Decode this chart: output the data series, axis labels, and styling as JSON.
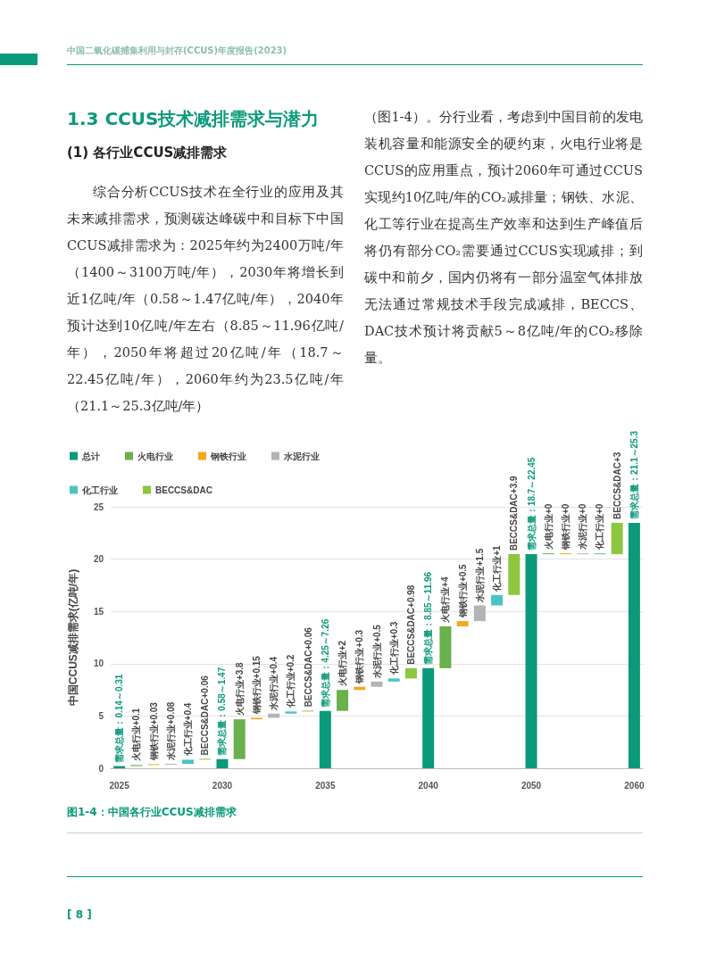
{
  "chart_data": {
    "type": "bar",
    "title": "图1-4：中国各行业CCUS减排需求",
    "ylabel": "中国CCUS减排需求(亿吨/年)",
    "annotations": [
      "中国二氧化碳捕集利用与封存(CCUS)年度报告(2023)",
      "1.3 CCUS技术减排需求与潜力",
      "(1) 各行业CCUS减排需求",
      "综合分析CCUS技术在全行业的应用及其未来减排需求，预测碳达峰碳中和目标下中国CCUS减排需求为：2025年约为2400万吨/年（1400～3100万吨/年），2030年将增长到近1亿吨/年（0.58～1.47亿吨/年），2040年预计达到10亿吨/年左右（8.85～11.96亿吨/年），2050年将超过20亿吨/年（18.7～22.45亿吨/年），2060年约为23.5亿吨/年（21.1～25.3亿吨/年）",
      "（图1-4）。分行业看，考虑到中国目前的发电装机容量和能源安全的硬约束，火电行业将是CCUS的应用重点，预计2060年可通过CCUS实现约10亿吨/年的CO₂减排量；钢铁、水泥、化工等行业在提高生产效率和达到生产峰值后将仍有部分CO₂需要通过CCUS实现减排；到碳中和前夕，国内仍将有一部分温室气体排放无法通过常规技术手段完成减排，BECCS、DAC技术预计将贡献5～8亿吨/年的CO₂移除量。",
      "[ 8 ]"
    ],
    "categories": [
      "2025",
      null,
      null,
      null,
      null,
      null,
      "2030",
      null,
      null,
      null,
      null,
      null,
      "2035",
      null,
      null,
      null,
      null,
      null,
      "2040",
      null,
      null,
      null,
      null,
      null,
      "2050",
      null,
      null,
      null,
      null,
      null,
      "2060"
    ],
    "ylim": [
      0,
      25
    ],
    "yticks": [
      0,
      5,
      10,
      15,
      20,
      25
    ],
    "grid": "y",
    "legend": "top left",
    "series": [
      {
        "name": "总计",
        "color": "#0a9a7a",
        "values": [
          0.21,
          null,
          null,
          null,
          null,
          null,
          0.88,
          null,
          null,
          null,
          null,
          null,
          5.49,
          null,
          null,
          null,
          null,
          null,
          9.57,
          null,
          null,
          null,
          null,
          null,
          20.47,
          null,
          null,
          null,
          null,
          null,
          23.47
        ],
        "value_labels": [
          "需求总量：0.14～0.31",
          null,
          null,
          null,
          null,
          null,
          "需求总量：0.58～1.47",
          null,
          null,
          null,
          null,
          null,
          "需求总量：4.25～7.26",
          null,
          null,
          null,
          null,
          null,
          "需求总量：8.85～11.96",
          null,
          null,
          null,
          null,
          null,
          "需求总量：18.7～22.45",
          null,
          null,
          null,
          null,
          null,
          "需求总量：21.1～25.3"
        ]
      },
      {
        "name": "火电行业",
        "color": "#6ab04c",
        "values": [
          null,
          0.1,
          null,
          null,
          null,
          null,
          null,
          3.8,
          null,
          null,
          null,
          null,
          null,
          2,
          null,
          null,
          null,
          null,
          null,
          4,
          null,
          null,
          null,
          null,
          null,
          0,
          null,
          null,
          null,
          null,
          null
        ],
        "base": [
          null,
          0.21,
          null,
          null,
          null,
          null,
          null,
          0.88,
          null,
          null,
          null,
          null,
          null,
          5.49,
          null,
          null,
          null,
          null,
          null,
          9.57,
          null,
          null,
          null,
          null,
          null,
          20.47,
          null,
          null,
          null,
          null,
          null
        ],
        "value_labels": [
          null,
          "火电行业+0.1",
          null,
          null,
          null,
          null,
          null,
          "火电行业+3.8",
          null,
          null,
          null,
          null,
          null,
          "火电行业+2",
          null,
          null,
          null,
          null,
          null,
          "火电行业+4",
          null,
          null,
          null,
          null,
          null,
          "火电行业+0",
          null,
          null,
          null,
          null,
          null
        ]
      },
      {
        "name": "钢铁行业",
        "color": "#f5a623",
        "values": [
          null,
          null,
          0.03,
          null,
          null,
          null,
          null,
          null,
          0.15,
          null,
          null,
          null,
          null,
          null,
          0.3,
          null,
          null,
          null,
          null,
          null,
          0.5,
          null,
          null,
          null,
          null,
          null,
          0,
          null,
          null,
          null,
          null
        ],
        "base": [
          null,
          null,
          0.31,
          null,
          null,
          null,
          null,
          null,
          4.68,
          null,
          null,
          null,
          null,
          null,
          7.49,
          null,
          null,
          null,
          null,
          null,
          13.57,
          null,
          null,
          null,
          null,
          null,
          20.47,
          null,
          null,
          null,
          null
        ],
        "value_labels": [
          null,
          null,
          "钢铁行业+0.03",
          null,
          null,
          null,
          null,
          null,
          "钢铁行业+0.15",
          null,
          null,
          null,
          null,
          null,
          "钢铁行业+0.3",
          null,
          null,
          null,
          null,
          null,
          "钢铁行业+0.5",
          null,
          null,
          null,
          null,
          null,
          "钢铁行业+0",
          null,
          null,
          null,
          null
        ]
      },
      {
        "name": "水泥行业",
        "color": "#b4b4b4",
        "values": [
          null,
          null,
          null,
          0.08,
          null,
          null,
          null,
          null,
          null,
          0.4,
          null,
          null,
          null,
          null,
          null,
          0.5,
          null,
          null,
          null,
          null,
          null,
          1.5,
          null,
          null,
          null,
          null,
          null,
          0,
          null,
          null,
          null
        ],
        "base": [
          null,
          null,
          null,
          0.34,
          null,
          null,
          null,
          null,
          null,
          4.83,
          null,
          null,
          null,
          null,
          null,
          7.79,
          null,
          null,
          null,
          null,
          null,
          14.07,
          null,
          null,
          null,
          null,
          null,
          20.47,
          null,
          null,
          null
        ],
        "value_labels": [
          null,
          null,
          null,
          "水泥行业+0.08",
          null,
          null,
          null,
          null,
          null,
          "水泥行业+0.4",
          null,
          null,
          null,
          null,
          null,
          "水泥行业+0.5",
          null,
          null,
          null,
          null,
          null,
          "水泥行业+1.5",
          null,
          null,
          null,
          null,
          null,
          "水泥行业+0",
          null,
          null,
          null
        ]
      },
      {
        "name": "化工行业",
        "color": "#4cc3c3",
        "values": [
          null,
          null,
          null,
          null,
          0.4,
          null,
          null,
          null,
          null,
          null,
          0.2,
          null,
          null,
          null,
          null,
          null,
          0.3,
          null,
          null,
          null,
          null,
          null,
          1,
          null,
          null,
          null,
          null,
          null,
          0,
          null,
          null
        ],
        "base": [
          null,
          null,
          null,
          null,
          0.42,
          null,
          null,
          null,
          null,
          null,
          5.23,
          null,
          null,
          null,
          null,
          null,
          8.29,
          null,
          null,
          null,
          null,
          null,
          15.57,
          null,
          null,
          null,
          null,
          null,
          20.47,
          null,
          null
        ],
        "value_labels": [
          null,
          null,
          null,
          null,
          "化工行业+0.4",
          null,
          null,
          null,
          null,
          null,
          "化工行业+0.2",
          null,
          null,
          null,
          null,
          null,
          "化工行业+0.3",
          null,
          null,
          null,
          null,
          null,
          "化工行业+1",
          null,
          null,
          null,
          null,
          null,
          "化工行业+0",
          null,
          null
        ]
      },
      {
        "name": "BECCS&DAC",
        "color": "#8dc63f",
        "values": [
          null,
          null,
          null,
          null,
          null,
          0.06,
          null,
          null,
          null,
          null,
          null,
          0.06,
          null,
          null,
          null,
          null,
          null,
          0.98,
          null,
          null,
          null,
          null,
          null,
          3.9,
          null,
          null,
          null,
          null,
          null,
          3,
          null
        ],
        "base": [
          null,
          null,
          null,
          null,
          null,
          0.82,
          null,
          null,
          null,
          null,
          null,
          5.43,
          null,
          null,
          null,
          null,
          null,
          8.59,
          null,
          null,
          null,
          null,
          null,
          16.57,
          null,
          null,
          null,
          null,
          null,
          20.47,
          null
        ],
        "value_labels": [
          null,
          null,
          null,
          null,
          null,
          "BECCS&DAC+0.06",
          null,
          null,
          null,
          null,
          null,
          "BECCS&DAC+0.06",
          null,
          null,
          null,
          null,
          null,
          "BECCS&DAC+0.98",
          null,
          null,
          null,
          null,
          null,
          "BECCS&DAC+3.9",
          null,
          null,
          null,
          null,
          null,
          "BECCS&DAC+3",
          null
        ]
      }
    ]
  }
}
